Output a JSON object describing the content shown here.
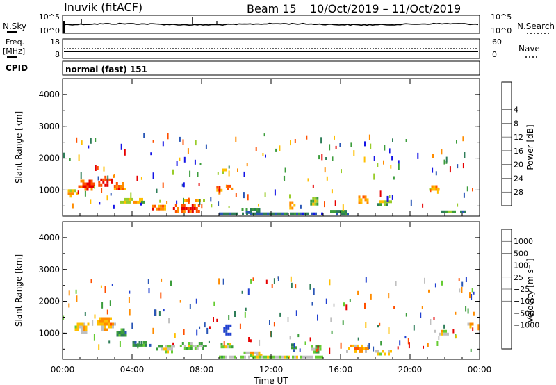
{
  "header": {
    "title": "Inuvik (fitACF)",
    "beam": "Beam 15",
    "date_range": "10/Oct/2019 – 11/Oct/2019"
  },
  "sky_panel": {
    "left_label": "N.Sky",
    "right_label": "N.Search",
    "right_legend_line": "dotted",
    "left_ticks": [
      "10^5",
      "10^0"
    ],
    "right_ticks": [
      "10^5",
      "10^0"
    ]
  },
  "freq_panel": {
    "left_label_1": "Freq.",
    "left_label_2": "[MHz]",
    "right_label": "Nave",
    "right_legend_line": "dotted",
    "left_ticks": [
      "18",
      "8"
    ],
    "right_ticks": [
      "60",
      "0"
    ]
  },
  "cpid": {
    "label": "CPID",
    "value": "normal (fast) 151"
  },
  "chart_data": [
    {
      "type": "heatmap",
      "title": "",
      "ylabel": "Slant Range [km]",
      "xlabel": "Time UT",
      "xlim": [
        0,
        24
      ],
      "ylim": [
        180,
        4500
      ],
      "y_ticks": [
        "1000",
        "2000",
        "3000",
        "4000"
      ],
      "x_ticks": [
        "00:00",
        "04:00",
        "08:00",
        "12:00",
        "16:00",
        "20:00",
        "00:00"
      ],
      "colorbar": {
        "label": "Power [dB]",
        "ticks": [
          "4",
          "8",
          "12",
          "16",
          "20",
          "24",
          "28"
        ],
        "colors": [
          "#1414e6",
          "#2a56b6",
          "#2e7d58",
          "#3c9d3c",
          "#99cc2a",
          "#ffbf00",
          "#ff8c00",
          "#ff5000",
          "#e60000"
        ]
      },
      "blobs": [
        {
          "t": 1.4,
          "r": 1150,
          "dt": 1.0,
          "dr": 350,
          "level": 8
        },
        {
          "t": 2.5,
          "r": 1250,
          "dt": 0.9,
          "dr": 400,
          "level": 8
        },
        {
          "t": 3.3,
          "r": 1100,
          "dt": 0.7,
          "dr": 300,
          "level": 7
        },
        {
          "t": 0.6,
          "r": 900,
          "dt": 0.6,
          "dr": 250,
          "level": 6
        },
        {
          "t": 4.0,
          "r": 650,
          "dt": 1.6,
          "dr": 200,
          "level": 5
        },
        {
          "t": 5.5,
          "r": 420,
          "dt": 1.0,
          "dr": 230,
          "level": 7
        },
        {
          "t": 7.2,
          "r": 420,
          "dt": 1.7,
          "dr": 260,
          "level": 8
        },
        {
          "t": 7.6,
          "r": 650,
          "dt": 1.2,
          "dr": 120,
          "level": 6
        },
        {
          "t": 9.0,
          "r": 1000,
          "dt": 0.3,
          "dr": 250,
          "level": 7
        },
        {
          "t": 9.6,
          "r": 1050,
          "dt": 0.3,
          "dr": 230,
          "level": 7
        },
        {
          "t": 9.3,
          "r": 1600,
          "dt": 0.2,
          "dr": 150,
          "level": 5
        },
        {
          "t": 11.0,
          "r": 350,
          "dt": 1.4,
          "dr": 150,
          "level": 3
        },
        {
          "t": 13.2,
          "r": 500,
          "dt": 0.3,
          "dr": 300,
          "level": 6
        },
        {
          "t": 14.5,
          "r": 600,
          "dt": 0.5,
          "dr": 350,
          "level": 4
        },
        {
          "t": 16.0,
          "r": 300,
          "dt": 1.2,
          "dr": 150,
          "level": 3
        },
        {
          "t": 17.3,
          "r": 700,
          "dt": 0.8,
          "dr": 250,
          "level": 6
        },
        {
          "t": 18.5,
          "r": 600,
          "dt": 1.0,
          "dr": 150,
          "level": 4
        },
        {
          "t": 21.5,
          "r": 1050,
          "dt": 0.8,
          "dr": 200,
          "level": 6
        },
        {
          "t": 22.5,
          "r": 300,
          "dt": 1.4,
          "dr": 120,
          "level": 3
        },
        {
          "t": 12.0,
          "r": 250,
          "dt": 6.0,
          "dr": 90,
          "level": 2
        }
      ]
    },
    {
      "type": "heatmap",
      "title": "",
      "ylabel": "Slant Range [km]",
      "xlabel": "Time UT",
      "xlim": [
        0,
        24
      ],
      "ylim": [
        180,
        4500
      ],
      "y_ticks": [
        "1000",
        "2000",
        "3000",
        "4000"
      ],
      "x_ticks": [
        "00:00",
        "04:00",
        "08:00",
        "12:00",
        "16:00",
        "20:00",
        "00:00"
      ],
      "colorbar": {
        "label": "Velocity [m s⁻¹]",
        "ticks": [
          "1000",
          "500",
          "100",
          "25",
          "−25",
          "−100",
          "−500",
          "−1000"
        ],
        "colors": [
          "#2040d0",
          "#2a56b6",
          "#2e7d58",
          "#3c9d3c",
          "#66cc33",
          "#c0c0c0",
          "#ffbf00",
          "#ff8c00",
          "#ff5000",
          "#e60000"
        ]
      },
      "blobs": [
        {
          "t": 1.2,
          "r": 1150,
          "dt": 1.0,
          "dr": 350,
          "level": 6
        },
        {
          "t": 2.5,
          "r": 1300,
          "dt": 1.0,
          "dr": 400,
          "level": 7
        },
        {
          "t": 3.4,
          "r": 1000,
          "dt": 0.6,
          "dr": 300,
          "level": 3
        },
        {
          "t": 4.5,
          "r": 650,
          "dt": 1.2,
          "dr": 200,
          "level": 3
        },
        {
          "t": 6.0,
          "r": 500,
          "dt": 1.2,
          "dr": 260,
          "level": 5
        },
        {
          "t": 7.5,
          "r": 600,
          "dt": 1.5,
          "dr": 250,
          "level": 5
        },
        {
          "t": 9.5,
          "r": 1100,
          "dt": 0.5,
          "dr": 350,
          "level": 0
        },
        {
          "t": 9.5,
          "r": 600,
          "dt": 0.8,
          "dr": 200,
          "level": 5
        },
        {
          "t": 11.0,
          "r": 350,
          "dt": 1.4,
          "dr": 150,
          "level": 6
        },
        {
          "t": 13.3,
          "r": 550,
          "dt": 0.3,
          "dr": 250,
          "level": 3
        },
        {
          "t": 14.6,
          "r": 500,
          "dt": 0.6,
          "dr": 250,
          "level": 5
        },
        {
          "t": 17.0,
          "r": 500,
          "dt": 1.6,
          "dr": 280,
          "level": 7
        },
        {
          "t": 18.5,
          "r": 400,
          "dt": 1.0,
          "dr": 150,
          "level": 6
        },
        {
          "t": 21.8,
          "r": 1000,
          "dt": 0.8,
          "dr": 200,
          "level": 6
        },
        {
          "t": 23.5,
          "r": 1250,
          "dt": 0.4,
          "dr": 150,
          "level": 7
        },
        {
          "t": 12.0,
          "r": 250,
          "dt": 6.0,
          "dr": 90,
          "level": 5
        }
      ]
    }
  ]
}
